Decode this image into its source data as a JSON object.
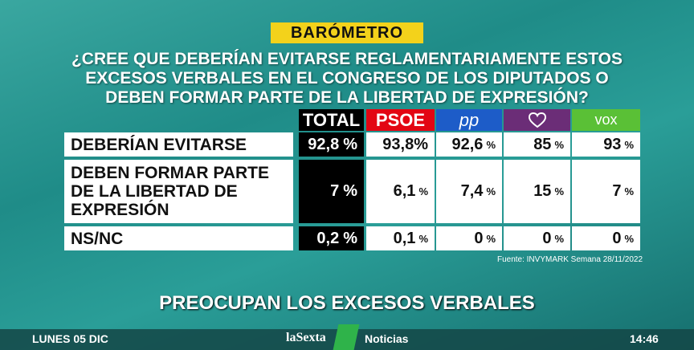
{
  "header": {
    "badge": "BARÓMETRO",
    "question": [
      "¿CREE QUE DEBERÍAN EVITARSE REGLAMENTARIAMENTE ESTOS",
      "EXCESOS VERBALES EN EL CONGRESO DE LOS DIPUTADOS O",
      "DEBEN FORMAR PARTE DE LA LIBERTAD DE EXPRESIÓN?"
    ]
  },
  "table": {
    "columns": [
      "TOTAL",
      "PSOE",
      "pp",
      null,
      "vox"
    ],
    "rows": [
      {
        "label": [
          "DEBERÍAN EVITARSE"
        ],
        "cells": [
          {
            "value": "92,8",
            "unit": "%"
          },
          {
            "value": "93,8%",
            "unit": null
          },
          {
            "value": "92,6",
            "unit": "%"
          },
          {
            "value": "85",
            "unit": "%"
          },
          {
            "value": "93",
            "unit": "%"
          }
        ]
      },
      {
        "label": [
          "DEBEN FORMAR PARTE",
          "DE LA LIBERTAD DE",
          "EXPRESIÓN"
        ],
        "cells": [
          {
            "value": "7",
            "unit": "%"
          },
          {
            "value": "6,1",
            "unit": "%"
          },
          {
            "value": "7,4",
            "unit": "%"
          },
          {
            "value": "15",
            "unit": "%"
          },
          {
            "value": "7",
            "unit": "%"
          }
        ]
      },
      {
        "label": [
          "NS/NC"
        ],
        "cells": [
          {
            "value": "0,2",
            "unit": "%"
          },
          {
            "value": "0,1",
            "unit": "%"
          },
          {
            "value": "0",
            "unit": "%"
          },
          {
            "value": "0",
            "unit": "%"
          },
          {
            "value": "0",
            "unit": "%"
          }
        ]
      }
    ]
  },
  "source": "Fuente: INVYMARK Semana 28/11/2022",
  "ticker": "PREOCUPAN LOS EXCESOS VERBALES",
  "footer": {
    "date": "LUNES 05 DIC",
    "channel": "laSexta",
    "program": "Noticias",
    "time": "14:46"
  }
}
